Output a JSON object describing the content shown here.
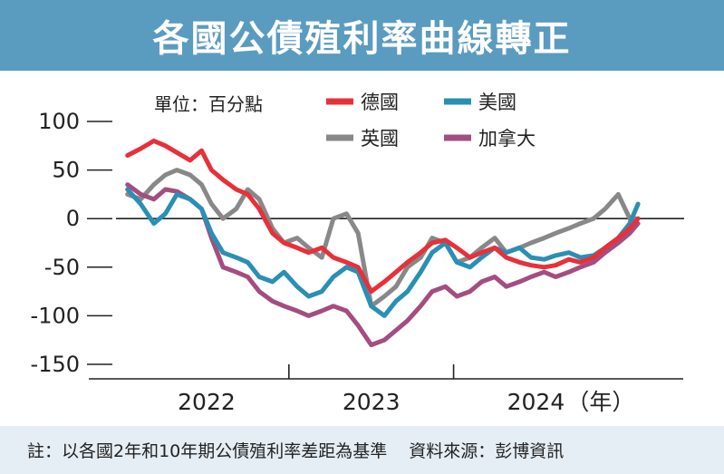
{
  "title": "各國公債殖利率曲線轉正",
  "footer": {
    "note": "註：以各國2年和10年期公債殖利率差距為基準",
    "source": "資料來源：彭博資訊"
  },
  "chart_data": {
    "type": "line",
    "unit_label": "單位：百分點",
    "xunit": "（年）",
    "ylim": [
      -150,
      100
    ],
    "yticks": [
      100,
      50,
      0,
      -50,
      -100,
      -150
    ],
    "ytick_labels": [
      "100",
      "50",
      "0",
      "-50",
      "-100",
      "-150"
    ],
    "xlim": [
      2021.45,
      2024.9
    ],
    "x_year_labels": [
      {
        "label": "2022",
        "x": 2022.0
      },
      {
        "label": "2023",
        "x": 2023.0
      },
      {
        "label": "2024",
        "x": 2024.0
      }
    ],
    "x_dividers": [
      2022.5,
      2023.5
    ],
    "colors": {
      "germany": "#e8303a",
      "us": "#2a8fb5",
      "uk": "#888888",
      "canada": "#a44d80",
      "zero_line": "#222222",
      "title_bg": "#5a9bc0",
      "footer_bg": "#e6eef5"
    },
    "series": [
      {
        "key": "germany",
        "name": "德國",
        "x": [
          2021.52,
          2021.6,
          2021.68,
          2021.75,
          2021.82,
          2021.9,
          2021.97,
          2022.03,
          2022.1,
          2022.18,
          2022.25,
          2022.32,
          2022.4,
          2022.47,
          2022.55,
          2022.62,
          2022.7,
          2022.77,
          2022.85,
          2022.92,
          2023.0,
          2023.08,
          2023.15,
          2023.22,
          2023.3,
          2023.37,
          2023.45,
          2023.52,
          2023.6,
          2023.67,
          2023.75,
          2023.82,
          2023.9,
          2023.97,
          2024.05,
          2024.12,
          2024.2,
          2024.27,
          2024.35,
          2024.42,
          2024.5,
          2024.57,
          2024.62
        ],
        "values": [
          65,
          72,
          80,
          75,
          68,
          60,
          70,
          50,
          40,
          30,
          25,
          10,
          -15,
          -25,
          -30,
          -35,
          -30,
          -40,
          -45,
          -50,
          -75,
          -65,
          -55,
          -45,
          -35,
          -25,
          -22,
          -30,
          -40,
          -35,
          -30,
          -40,
          -45,
          -48,
          -50,
          -48,
          -42,
          -45,
          -40,
          -30,
          -20,
          -10,
          0
        ]
      },
      {
        "key": "us",
        "name": "美國",
        "x": [
          2021.52,
          2021.6,
          2021.68,
          2021.75,
          2021.82,
          2021.9,
          2021.97,
          2022.03,
          2022.1,
          2022.18,
          2022.25,
          2022.32,
          2022.4,
          2022.47,
          2022.55,
          2022.62,
          2022.7,
          2022.77,
          2022.85,
          2022.92,
          2023.0,
          2023.08,
          2023.15,
          2023.22,
          2023.3,
          2023.37,
          2023.45,
          2023.52,
          2023.6,
          2023.67,
          2023.75,
          2023.82,
          2023.9,
          2023.97,
          2024.05,
          2024.12,
          2024.2,
          2024.27,
          2024.35,
          2024.42,
          2024.5,
          2024.57,
          2024.62
        ],
        "values": [
          30,
          15,
          -5,
          5,
          25,
          20,
          10,
          -15,
          -35,
          -40,
          -45,
          -60,
          -65,
          -55,
          -70,
          -80,
          -75,
          -60,
          -50,
          -55,
          -90,
          -100,
          -85,
          -75,
          -55,
          -35,
          -25,
          -45,
          -50,
          -40,
          -30,
          -35,
          -30,
          -40,
          -42,
          -38,
          -35,
          -40,
          -38,
          -30,
          -20,
          -5,
          15
        ]
      },
      {
        "key": "uk",
        "name": "英國",
        "x": [
          2021.52,
          2021.6,
          2021.68,
          2021.75,
          2021.82,
          2021.9,
          2021.97,
          2022.03,
          2022.1,
          2022.18,
          2022.25,
          2022.32,
          2022.4,
          2022.47,
          2022.55,
          2022.62,
          2022.7,
          2022.77,
          2022.85,
          2022.92,
          2023.0,
          2023.08,
          2023.15,
          2023.22,
          2023.3,
          2023.37,
          2023.45,
          2023.52,
          2023.6,
          2023.67,
          2023.75,
          2023.82,
          2023.9,
          2023.97,
          2024.05,
          2024.12,
          2024.2,
          2024.27,
          2024.35,
          2024.42,
          2024.5,
          2024.57,
          2024.62
        ],
        "values": [
          25,
          20,
          35,
          45,
          50,
          45,
          35,
          15,
          0,
          10,
          30,
          20,
          -10,
          -25,
          -20,
          -30,
          -40,
          0,
          5,
          -15,
          -90,
          -80,
          -70,
          -50,
          -40,
          -20,
          -25,
          -45,
          -40,
          -30,
          -20,
          -35,
          -30,
          -25,
          -20,
          -15,
          -10,
          -5,
          0,
          10,
          25,
          0,
          0
        ]
      },
      {
        "key": "canada",
        "name": "加拿大",
        "x": [
          2021.52,
          2021.6,
          2021.68,
          2021.75,
          2021.82,
          2021.9,
          2021.97,
          2022.03,
          2022.1,
          2022.18,
          2022.25,
          2022.32,
          2022.4,
          2022.47,
          2022.55,
          2022.62,
          2022.7,
          2022.77,
          2022.85,
          2022.92,
          2023.0,
          2023.08,
          2023.15,
          2023.22,
          2023.3,
          2023.37,
          2023.45,
          2023.52,
          2023.6,
          2023.67,
          2023.75,
          2023.82,
          2023.9,
          2023.97,
          2024.05,
          2024.12,
          2024.2,
          2024.27,
          2024.35,
          2024.42,
          2024.5,
          2024.57,
          2024.62
        ],
        "values": [
          35,
          25,
          20,
          30,
          28,
          20,
          10,
          -20,
          -50,
          -55,
          -60,
          -75,
          -85,
          -90,
          -95,
          -100,
          -95,
          -90,
          -95,
          -110,
          -130,
          -125,
          -115,
          -105,
          -90,
          -75,
          -70,
          -80,
          -75,
          -65,
          -60,
          -70,
          -65,
          -60,
          -55,
          -60,
          -55,
          -50,
          -45,
          -35,
          -25,
          -15,
          -5
        ]
      }
    ]
  }
}
